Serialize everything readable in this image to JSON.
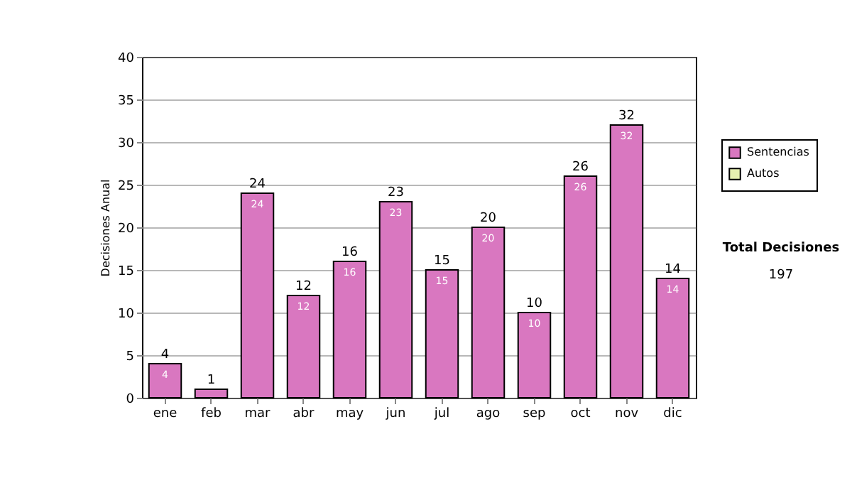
{
  "chart_data": {
    "type": "bar",
    "ylabel": "Decisiones Anual",
    "categories": [
      "ene",
      "feb",
      "mar",
      "abr",
      "may",
      "jun",
      "jul",
      "ago",
      "sep",
      "oct",
      "nov",
      "dic"
    ],
    "series": [
      {
        "name": "Sentencias",
        "color": "#d977c0",
        "values": [
          4,
          1,
          24,
          12,
          16,
          23,
          15,
          20,
          10,
          26,
          32,
          14
        ],
        "value_labels": [
          "4",
          null,
          "24",
          "12",
          "16",
          "23",
          "15",
          "20",
          "10",
          "26",
          "32",
          "14"
        ]
      },
      {
        "name": "Autos",
        "color": "#e6f0b0",
        "values": [
          null,
          null,
          null,
          null,
          null,
          null,
          null,
          null,
          null,
          null,
          null,
          null
        ]
      }
    ],
    "totals": [
      "4",
      "1",
      "24",
      "12",
      "16",
      "23",
      "15",
      "20",
      "10",
      "26",
      "32",
      "14"
    ],
    "ylim": [
      0,
      40
    ],
    "yticks": [
      0,
      5,
      10,
      15,
      20,
      25,
      30,
      35,
      40
    ],
    "grid": "y",
    "legend": "right",
    "annotations": [
      "Total Decisiones",
      "197"
    ]
  }
}
